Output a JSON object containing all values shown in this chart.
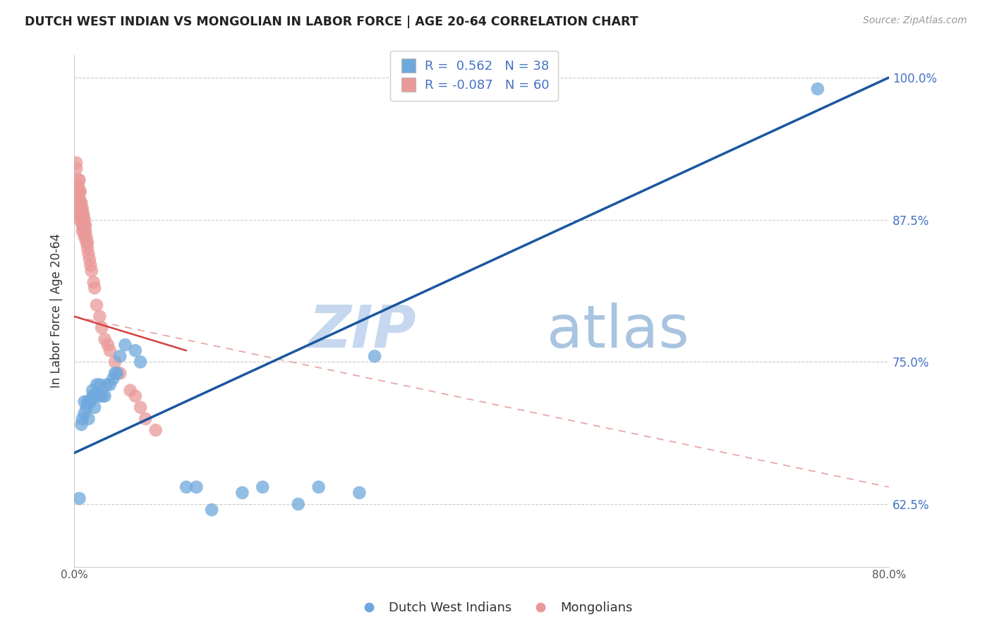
{
  "title": "DUTCH WEST INDIAN VS MONGOLIAN IN LABOR FORCE | AGE 20-64 CORRELATION CHART",
  "source": "Source: ZipAtlas.com",
  "ylabel": "In Labor Force | Age 20-64",
  "xlim": [
    0.0,
    0.8
  ],
  "ylim": [
    0.57,
    1.02
  ],
  "yticks": [
    0.625,
    0.75,
    0.875,
    1.0
  ],
  "ytick_labels": [
    "62.5%",
    "75.0%",
    "87.5%",
    "100.0%"
  ],
  "xticks": [
    0.0,
    0.1,
    0.2,
    0.3,
    0.4,
    0.5,
    0.6,
    0.7,
    0.8
  ],
  "xtick_labels": [
    "0.0%",
    "",
    "",
    "",
    "",
    "",
    "",
    "",
    "80.0%"
  ],
  "blue_color": "#6fa8dc",
  "pink_color": "#ea9999",
  "blue_line_color": "#1a56a0",
  "pink_line_color": "#d44040",
  "pink_line_dash_color": "#e8a0a0",
  "watermark_zip": "ZIP",
  "watermark_atlas": "atlas",
  "dutch_x": [
    0.005,
    0.007,
    0.008,
    0.01,
    0.01,
    0.012,
    0.013,
    0.014,
    0.015,
    0.016,
    0.018,
    0.018,
    0.02,
    0.02,
    0.022,
    0.025,
    0.025,
    0.028,
    0.03,
    0.032,
    0.035,
    0.038,
    0.04,
    0.042,
    0.045,
    0.05,
    0.06,
    0.065,
    0.11,
    0.12,
    0.135,
    0.165,
    0.185,
    0.22,
    0.24,
    0.28,
    0.295,
    0.73
  ],
  "dutch_y": [
    0.63,
    0.695,
    0.7,
    0.705,
    0.715,
    0.71,
    0.715,
    0.7,
    0.715,
    0.715,
    0.72,
    0.725,
    0.71,
    0.72,
    0.73,
    0.72,
    0.73,
    0.72,
    0.72,
    0.73,
    0.73,
    0.735,
    0.74,
    0.74,
    0.755,
    0.765,
    0.76,
    0.75,
    0.64,
    0.64,
    0.62,
    0.635,
    0.64,
    0.625,
    0.64,
    0.635,
    0.755,
    0.99
  ],
  "mongolian_x": [
    0.002,
    0.002,
    0.003,
    0.003,
    0.003,
    0.004,
    0.004,
    0.004,
    0.004,
    0.005,
    0.005,
    0.005,
    0.005,
    0.005,
    0.005,
    0.005,
    0.006,
    0.006,
    0.006,
    0.007,
    0.007,
    0.007,
    0.007,
    0.008,
    0.008,
    0.008,
    0.008,
    0.008,
    0.009,
    0.009,
    0.009,
    0.01,
    0.01,
    0.01,
    0.01,
    0.011,
    0.011,
    0.012,
    0.012,
    0.013,
    0.013,
    0.014,
    0.015,
    0.016,
    0.017,
    0.019,
    0.02,
    0.022,
    0.025,
    0.027,
    0.03,
    0.033,
    0.035,
    0.04,
    0.045,
    0.055,
    0.06,
    0.065,
    0.07,
    0.08
  ],
  "mongolian_y": [
    0.92,
    0.925,
    0.9,
    0.895,
    0.89,
    0.91,
    0.905,
    0.9,
    0.895,
    0.91,
    0.9,
    0.895,
    0.89,
    0.885,
    0.88,
    0.875,
    0.9,
    0.89,
    0.88,
    0.89,
    0.885,
    0.88,
    0.875,
    0.885,
    0.88,
    0.875,
    0.87,
    0.865,
    0.88,
    0.875,
    0.87,
    0.875,
    0.87,
    0.865,
    0.86,
    0.87,
    0.865,
    0.86,
    0.855,
    0.855,
    0.85,
    0.845,
    0.84,
    0.835,
    0.83,
    0.82,
    0.815,
    0.8,
    0.79,
    0.78,
    0.77,
    0.765,
    0.76,
    0.75,
    0.74,
    0.725,
    0.72,
    0.71,
    0.7,
    0.69
  ],
  "blue_line_x": [
    0.0,
    0.8
  ],
  "blue_line_y": [
    0.67,
    1.0
  ],
  "pink_line_x": [
    0.0,
    0.8
  ],
  "pink_line_y": [
    0.79,
    0.64
  ],
  "pink_short_line_x": [
    0.0,
    0.11
  ],
  "pink_short_line_y": [
    0.79,
    0.76
  ]
}
